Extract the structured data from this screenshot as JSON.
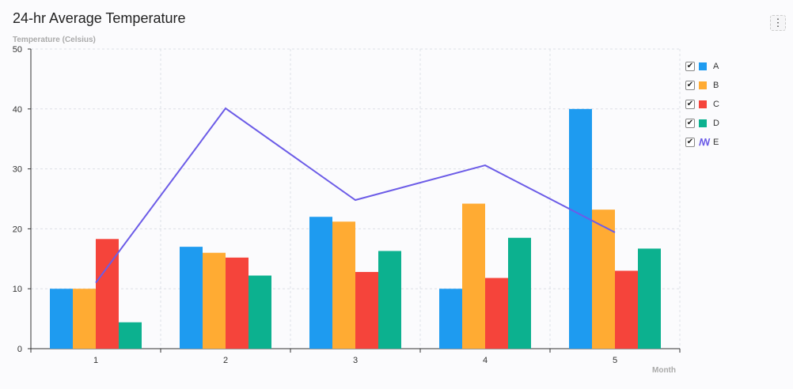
{
  "header": {
    "title": "24-hr Average Temperature",
    "menu_icon": "⋮"
  },
  "legend": {
    "check_glyph": "✔",
    "line_glyph": "ꟿ"
  },
  "chart_data": {
    "type": "bar",
    "ylabel": "Temperature (Celsius)",
    "xlabel": "Month",
    "categories": [
      "1",
      "2",
      "3",
      "4",
      "5"
    ],
    "ylim": [
      0,
      50
    ],
    "yticks": [
      0,
      10,
      20,
      30,
      40,
      50
    ],
    "grid": true,
    "legend_position": "right",
    "series": [
      {
        "name": "A",
        "type": "bar",
        "color": "#1e9bf0",
        "values": [
          10,
          17,
          22,
          10,
          40
        ]
      },
      {
        "name": "B",
        "type": "bar",
        "color": "#ffab33",
        "values": [
          10,
          16,
          21.2,
          24.2,
          23.2
        ]
      },
      {
        "name": "C",
        "type": "bar",
        "color": "#f5443b",
        "values": [
          18.3,
          15.2,
          12.8,
          11.8,
          13
        ]
      },
      {
        "name": "D",
        "type": "bar",
        "color": "#0cb18f",
        "values": [
          4.4,
          12.2,
          16.3,
          18.5,
          16.7
        ]
      },
      {
        "name": "E",
        "type": "line",
        "color": "#6c5ce7",
        "values": [
          11,
          40.1,
          24.8,
          30.6,
          19.4
        ]
      }
    ]
  }
}
